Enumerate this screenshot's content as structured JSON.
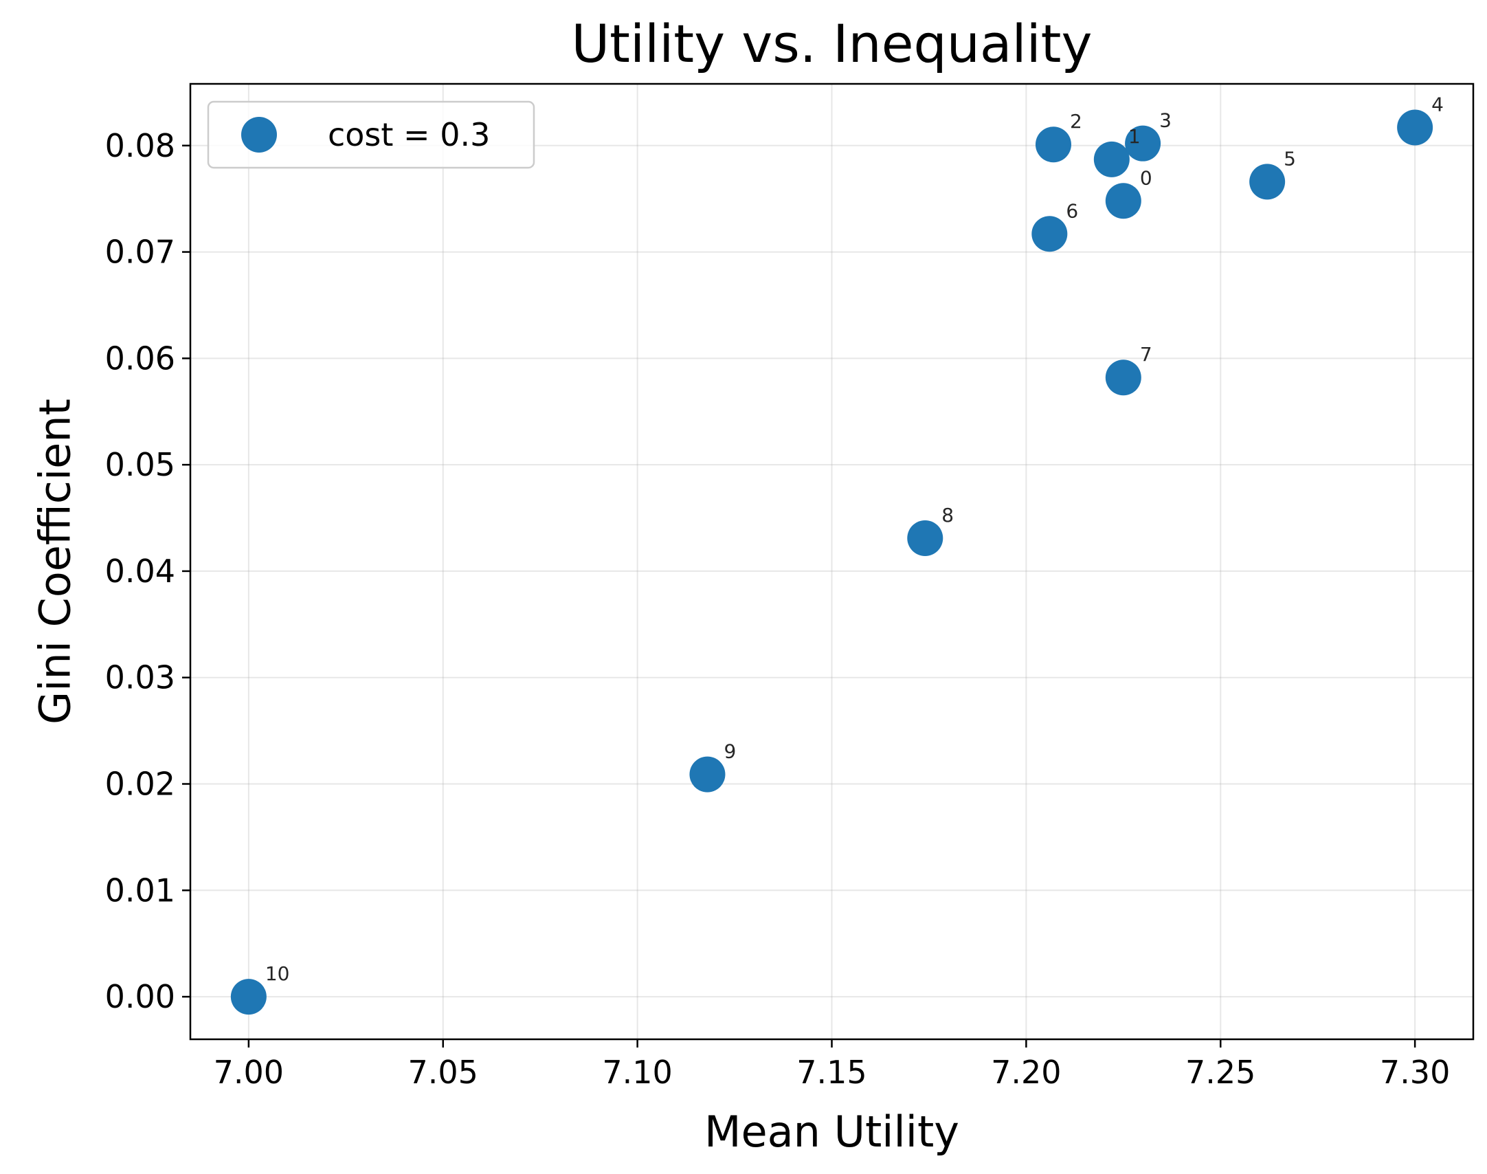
{
  "chart_data": {
    "type": "scatter",
    "title": "Utility vs. Inequality",
    "xlabel": "Mean Utility",
    "ylabel": "Gini Coefficient",
    "xlim": [
      6.985,
      7.315
    ],
    "ylim": [
      -0.004,
      0.0858
    ],
    "xticks": [
      "7.00",
      "7.05",
      "7.10",
      "7.15",
      "7.20",
      "7.25",
      "7.30"
    ],
    "yticks": [
      "0.00",
      "0.01",
      "0.02",
      "0.03",
      "0.04",
      "0.05",
      "0.06",
      "0.07",
      "0.08"
    ],
    "grid": true,
    "legend_position": "upper-left",
    "series": [
      {
        "name": "cost = 0.3",
        "color": "#1f77b4",
        "points": [
          {
            "label": "0",
            "x": 7.225,
            "y": 0.0748
          },
          {
            "label": "1",
            "x": 7.222,
            "y": 0.0787
          },
          {
            "label": "2",
            "x": 7.207,
            "y": 0.0801
          },
          {
            "label": "3",
            "x": 7.23,
            "y": 0.0802
          },
          {
            "label": "4",
            "x": 7.3,
            "y": 0.0817
          },
          {
            "label": "5",
            "x": 7.262,
            "y": 0.0766
          },
          {
            "label": "6",
            "x": 7.206,
            "y": 0.0717
          },
          {
            "label": "7",
            "x": 7.225,
            "y": 0.0582
          },
          {
            "label": "8",
            "x": 7.174,
            "y": 0.0431
          },
          {
            "label": "9",
            "x": 7.118,
            "y": 0.0209
          },
          {
            "label": "10",
            "x": 7.0,
            "y": 0.0
          }
        ]
      }
    ]
  }
}
